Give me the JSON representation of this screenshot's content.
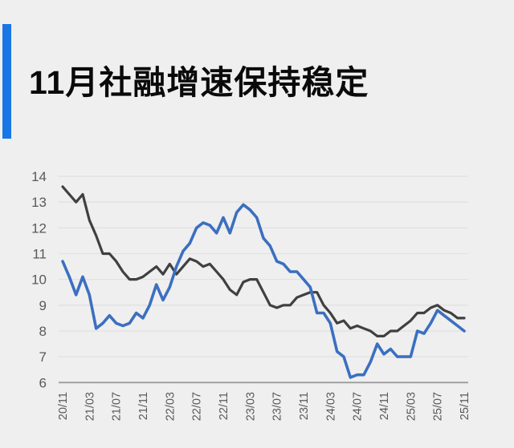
{
  "title": "11月社融增速保持稳定",
  "colors": {
    "background": "#EFEFEF",
    "accent_bar": "#1877E5",
    "title_text": "#0A0A0A",
    "grid": "#E1E1E1",
    "axis": "#9C9C9C",
    "tick_text": "#595959",
    "dark_line": "#404040",
    "blue_line": "#3B6FC0"
  },
  "chart_data": {
    "type": "line",
    "title": "11月社融增速保持稳定",
    "xlabel": "",
    "ylabel": "",
    "ylim": [
      6,
      14
    ],
    "grid": true,
    "legend": false,
    "ytick_labels": [
      "6",
      "7",
      "8",
      "9",
      "10",
      "11",
      "12",
      "13",
      "14"
    ],
    "x_tick_labels": [
      "20/11",
      "21/03",
      "21/07",
      "21/11",
      "22/03",
      "22/07",
      "22/11",
      "23/03",
      "23/07",
      "23/11",
      "24/03",
      "24/07",
      "24/11",
      "25/03",
      "25/07",
      "25/11"
    ],
    "x_tick_every": 4,
    "x_start_label": "20/11",
    "x_end_label": "25/11",
    "points_per_series": 61,
    "series": [
      {
        "name": "dark",
        "color": "#404040",
        "width": 3.2,
        "values": [
          13.6,
          13.3,
          13.0,
          13.3,
          12.3,
          11.7,
          11.0,
          11.0,
          10.7,
          10.3,
          10.0,
          10.0,
          10.1,
          10.3,
          10.5,
          10.2,
          10.6,
          10.2,
          10.5,
          10.8,
          10.7,
          10.5,
          10.6,
          10.3,
          10.0,
          9.6,
          9.4,
          9.9,
          10.0,
          10.0,
          9.5,
          9.0,
          8.9,
          9.0,
          9.0,
          9.3,
          9.4,
          9.5,
          9.5,
          9.0,
          8.7,
          8.3,
          8.4,
          8.1,
          8.2,
          8.1,
          8.0,
          7.8,
          7.8,
          8.0,
          8.0,
          8.2,
          8.4,
          8.7,
          8.7,
          8.9,
          9.0,
          8.8,
          8.7,
          8.5,
          8.5
        ]
      },
      {
        "name": "blue",
        "color": "#3B6FC0",
        "width": 3.6,
        "values": [
          10.7,
          10.1,
          9.4,
          10.1,
          9.4,
          8.1,
          8.3,
          8.6,
          8.3,
          8.2,
          8.3,
          8.7,
          8.5,
          9.0,
          9.8,
          9.2,
          9.7,
          10.5,
          11.1,
          11.4,
          12.0,
          12.2,
          12.1,
          11.8,
          12.4,
          11.8,
          12.6,
          12.9,
          12.7,
          12.4,
          11.6,
          11.3,
          10.7,
          10.6,
          10.3,
          10.3,
          10.0,
          9.7,
          8.7,
          8.7,
          8.3,
          7.2,
          7.0,
          6.2,
          6.3,
          6.3,
          6.8,
          7.5,
          7.1,
          7.3,
          7.0,
          7.0,
          7.0,
          8.0,
          7.9,
          8.3,
          8.8,
          8.6,
          8.4,
          8.2,
          8.0
        ]
      }
    ]
  }
}
